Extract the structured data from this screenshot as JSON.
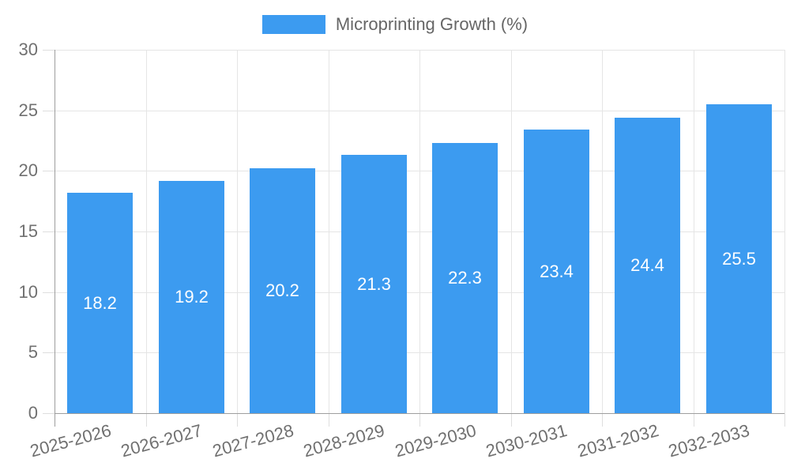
{
  "chart_data": {
    "type": "bar",
    "title": "",
    "legend": [
      "Microprinting Growth (%)"
    ],
    "legend_position": "top-center",
    "categories": [
      "2025-2026",
      "2026-2027",
      "2027-2028",
      "2028-2029",
      "2029-2030",
      "2030-2031",
      "2031-2032",
      "2032-2033"
    ],
    "series": [
      {
        "name": "Microprinting Growth (%)",
        "values": [
          18.2,
          19.2,
          20.2,
          21.3,
          22.3,
          23.4,
          24.4,
          25.5
        ]
      }
    ],
    "value_labels_shown_inside_bars": true,
    "xlabel": "",
    "ylabel": "",
    "ylim": [
      0,
      30
    ],
    "yticks": [
      0,
      5,
      10,
      15,
      20,
      25,
      30
    ],
    "grid": true,
    "x_label_rotation_deg": -15,
    "colors": {
      "bar": "#3c9bf0",
      "bar_value_text": "#ffffff",
      "gridline": "#e5e5e5",
      "tick_mark": "#dedede",
      "axis_line": "#9e9e9e",
      "axis_text": "#707070",
      "legend_text": "#666666",
      "background": "#ffffff"
    }
  }
}
